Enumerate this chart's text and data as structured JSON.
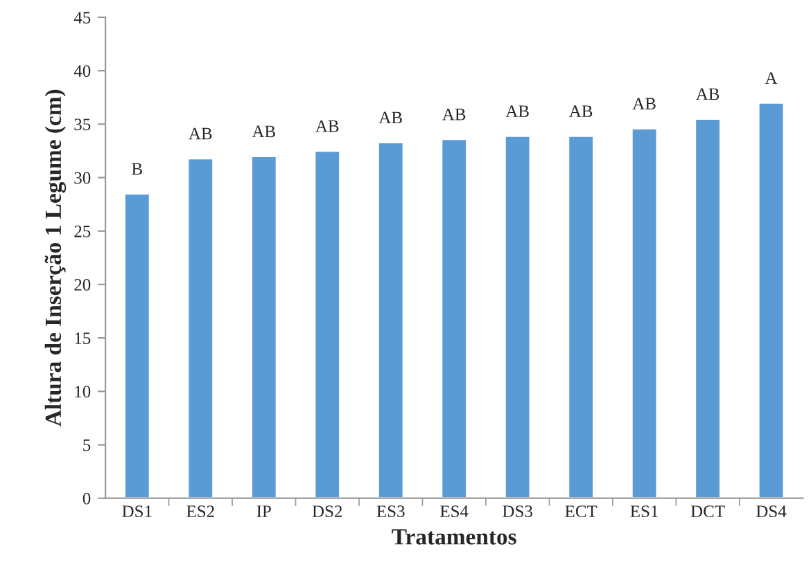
{
  "chart_data": {
    "type": "bar",
    "xlabel": "Tratamentos",
    "ylabel": "Altura de Inserção 1 Legume (cm)",
    "categories": [
      "DS1",
      "ES2",
      "IP",
      "DS2",
      "ES3",
      "ES4",
      "DS3",
      "ECT",
      "ES1",
      "DCT",
      "DS4"
    ],
    "series": [
      {
        "color": "#5b9bd5",
        "values": [
          28.5,
          31.8,
          32.0,
          32.5,
          33.3,
          33.6,
          33.9,
          33.9,
          34.6,
          35.5,
          37.0
        ]
      }
    ],
    "ylim": [
      0,
      45
    ],
    "yticks": [
      0,
      5,
      10,
      15,
      20,
      25,
      30,
      35,
      40,
      45
    ],
    "grid": false,
    "legend": false,
    "annotations": [
      {
        "text": "B",
        "x": "DS1",
        "y": 28.5
      },
      {
        "text": "AB",
        "x": "ES2",
        "y": 31.8
      },
      {
        "text": "AB",
        "x": "IP",
        "y": 32.0
      },
      {
        "text": "AB",
        "x": "DS2",
        "y": 32.5
      },
      {
        "text": "AB",
        "x": "ES3",
        "y": 33.3
      },
      {
        "text": "AB",
        "x": "ES4",
        "y": 33.6
      },
      {
        "text": "AB",
        "x": "DS3",
        "y": 33.9
      },
      {
        "text": "AB",
        "x": "ECT",
        "y": 33.9
      },
      {
        "text": "AB",
        "x": "ES1",
        "y": 34.6
      },
      {
        "text": "AB",
        "x": "DCT",
        "y": 35.5
      },
      {
        "text": "A",
        "x": "DS4",
        "y": 37.0
      }
    ]
  }
}
